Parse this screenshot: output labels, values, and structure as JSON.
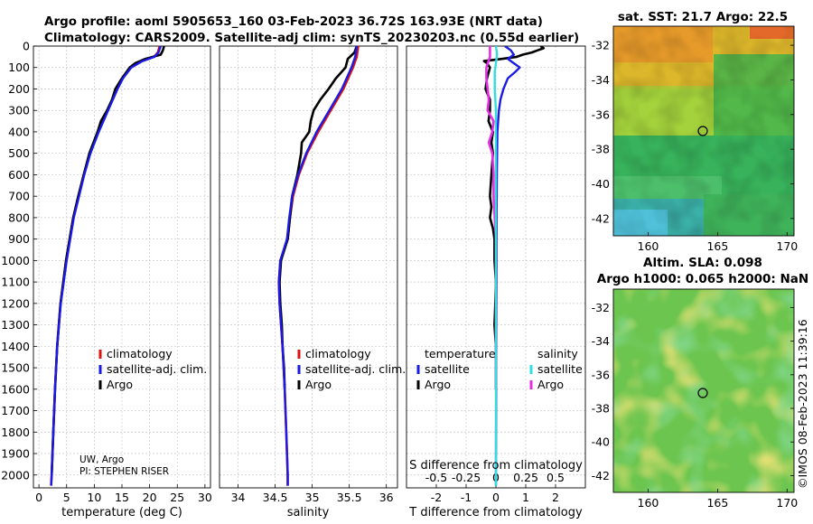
{
  "header": {
    "line1": "Argo profile: aoml 5905653_160 03-Feb-2023 36.72S 163.93E (NRT data)",
    "line2": "Climatology: CARS2009. Satellite-adj clim: synTS_20230203.nc (0.55d earlier)"
  },
  "colors": {
    "climatology": "#e01010",
    "satellite": "#1a1ae6",
    "argo": "#000000",
    "sal_sat": "#33dddd",
    "sal_argo": "#e62ee6"
  },
  "chart_data": [
    {
      "id": "temperature",
      "type": "line",
      "xlabel": "temperature (deg C)",
      "ylabel": "",
      "xlim": [
        -1,
        31
      ],
      "ylim": [
        2060,
        0
      ],
      "xticks": [
        0,
        5,
        10,
        15,
        20,
        25,
        30
      ],
      "xtick_labels": [
        "0",
        "5",
        "10",
        "15",
        "20",
        "25",
        "30"
      ],
      "yticks": [
        0,
        100,
        200,
        300,
        400,
        500,
        600,
        700,
        800,
        900,
        1000,
        1100,
        1200,
        1300,
        1400,
        1500,
        1600,
        1700,
        1800,
        1900,
        2000
      ],
      "legend": [
        "climatology",
        "satellite-adj. clim.",
        "Argo"
      ],
      "legend_position": "center-right",
      "annotation": [
        "UW, Argo",
        "PI: STEPHEN RISER"
      ],
      "series": [
        {
          "name": "climatology",
          "depth": [
            0,
            30,
            50,
            70,
            100,
            150,
            200,
            300,
            400,
            500,
            600,
            800,
            1000,
            1200,
            1400,
            1600,
            1800,
            2000,
            2050
          ],
          "values": [
            21.8,
            21.5,
            20.8,
            18.6,
            16.6,
            15.1,
            14.1,
            12.4,
            10.7,
            9.2,
            8.1,
            6.2,
            4.9,
            3.9,
            3.3,
            2.9,
            2.6,
            2.3,
            2.2
          ]
        },
        {
          "name": "satellite-adj. clim.",
          "depth": [
            0,
            30,
            50,
            70,
            100,
            150,
            200,
            300,
            400,
            500,
            600,
            800,
            1000,
            1200,
            1400,
            1600,
            1800,
            2000,
            2050
          ],
          "values": [
            22.0,
            21.6,
            20.9,
            18.7,
            16.7,
            15.2,
            14.2,
            12.5,
            10.8,
            9.3,
            8.2,
            6.3,
            5.0,
            3.95,
            3.3,
            2.9,
            2.6,
            2.3,
            2.2
          ]
        },
        {
          "name": "Argo",
          "depth": [
            0,
            20,
            40,
            60,
            80,
            100,
            150,
            200,
            250,
            300,
            350,
            400,
            500,
            600,
            700,
            800,
            1000,
            1200,
            1400,
            1600,
            1800,
            2000
          ],
          "values": [
            22.6,
            22.4,
            22.0,
            19.2,
            17.4,
            16.4,
            15.0,
            13.8,
            13.2,
            12.3,
            11.2,
            10.6,
            9.1,
            8.1,
            7.1,
            6.2,
            4.9,
            3.9,
            3.3,
            2.9,
            2.6,
            2.3
          ]
        }
      ]
    },
    {
      "id": "salinity",
      "type": "line",
      "xlabel": "salinity",
      "xlim": [
        33.75,
        36.15
      ],
      "ylim": [
        2060,
        0
      ],
      "xticks": [
        34,
        34.5,
        35,
        35.5,
        36
      ],
      "xtick_labels": [
        "34",
        "34.5",
        "35",
        "35.5",
        "36"
      ],
      "legend": [
        "climatology",
        "satellite-adj. clim.",
        "Argo"
      ],
      "legend_position": "center-right",
      "series": [
        {
          "name": "climatology",
          "depth": [
            0,
            50,
            100,
            200,
            300,
            400,
            500,
            600,
            700,
            800,
            900,
            1000,
            1100,
            1200,
            1300,
            1400,
            1600,
            1800,
            2000,
            2050
          ],
          "values": [
            35.62,
            35.6,
            35.55,
            35.42,
            35.25,
            35.08,
            34.93,
            34.82,
            34.74,
            34.7,
            34.67,
            34.57,
            34.55,
            34.56,
            34.58,
            34.6,
            34.63,
            34.65,
            34.67,
            34.67
          ]
        },
        {
          "name": "satellite-adj. clim.",
          "depth": [
            0,
            50,
            100,
            200,
            300,
            400,
            500,
            600,
            700,
            800,
            900,
            1000,
            1100,
            1200,
            1300,
            1400,
            1600,
            1800,
            2000,
            2050
          ],
          "values": [
            35.6,
            35.58,
            35.53,
            35.4,
            35.23,
            35.06,
            34.92,
            34.81,
            34.73,
            34.69,
            34.66,
            34.57,
            34.55,
            34.56,
            34.58,
            34.6,
            34.63,
            34.65,
            34.67,
            34.67
          ]
        },
        {
          "name": "Argo",
          "depth": [
            0,
            30,
            60,
            100,
            150,
            200,
            250,
            300,
            350,
            400,
            450,
            500,
            600,
            700,
            800,
            900,
            1000,
            1100,
            1200,
            1300,
            1400,
            1500,
            1600
          ],
          "values": [
            35.6,
            35.57,
            35.48,
            35.45,
            35.32,
            35.22,
            35.11,
            35.02,
            34.98,
            34.96,
            34.86,
            34.85,
            34.8,
            34.73,
            34.7,
            34.67,
            34.58,
            34.56,
            34.57,
            34.59,
            34.6,
            34.62,
            34.63
          ]
        }
      ]
    },
    {
      "id": "difference",
      "type": "line",
      "xlabel": "T difference from climatology",
      "x2label": "S difference from climatology",
      "xlim": [
        -3,
        3
      ],
      "x2lim": [
        -0.75,
        0.75
      ],
      "ylim": [
        2060,
        0
      ],
      "xticks": [
        -2,
        -1,
        0,
        1,
        2
      ],
      "xtick_labels": [
        "-2",
        "-1",
        "0",
        "1",
        "2"
      ],
      "x2ticks": [
        -0.5,
        -0.25,
        0,
        0.25,
        0.5
      ],
      "x2tick_labels": [
        "-0.5",
        "-0.25",
        "0",
        "0.25",
        "0.5"
      ],
      "legend_headers": [
        "temperature",
        "salinity"
      ],
      "legend": [
        "satellite",
        "Argo",
        "satellite",
        "Argo"
      ],
      "series": [
        {
          "name": "temperature satellite",
          "depth": [
            0,
            20,
            40,
            60,
            80,
            100,
            120,
            150,
            200,
            250,
            300,
            400,
            600,
            800,
            1000,
            1500,
            2000,
            2050
          ],
          "values": [
            0.3,
            0.5,
            0.6,
            0.4,
            0.6,
            0.8,
            0.65,
            0.4,
            0.25,
            0.15,
            0.1,
            0.05,
            0.03,
            0.02,
            0.02,
            0.01,
            0.0,
            0.0
          ]
        },
        {
          "name": "temperature Argo",
          "depth": [
            0,
            10,
            20,
            30,
            40,
            50,
            60,
            70,
            80,
            100,
            150,
            200,
            250,
            300,
            350,
            400,
            450,
            500,
            600,
            700,
            750,
            800,
            850,
            900,
            1000,
            1100,
            1200,
            1300,
            1400,
            1500,
            1600
          ],
          "values": [
            1.5,
            1.6,
            1.4,
            1.2,
            0.9,
            0.7,
            0.2,
            -0.4,
            -0.3,
            -0.2,
            -0.3,
            -0.35,
            -0.2,
            -0.2,
            -0.25,
            -0.1,
            -0.15,
            -0.1,
            -0.15,
            -0.2,
            -0.15,
            -0.2,
            -0.1,
            -0.05,
            -0.05,
            0.0,
            -0.02,
            -0.05,
            0.0,
            0.0,
            0.0
          ]
        },
        {
          "name": "salinity satellite",
          "depth": [
            0,
            40,
            80,
            120,
            200,
            300,
            400,
            600,
            800,
            1000,
            1500,
            2000,
            2050
          ],
          "values": [
            0.0,
            0.01,
            0.0,
            -0.01,
            -0.01,
            0.0,
            0.0,
            0.0,
            0.0,
            0.0,
            0.0,
            0.0,
            0.0
          ]
        },
        {
          "name": "salinity Argo",
          "depth": [
            0,
            50,
            100,
            150,
            200,
            250,
            300,
            350,
            400,
            450,
            500,
            600,
            700,
            800,
            900,
            1000,
            1100,
            1200,
            1300,
            1400,
            1500,
            1600
          ],
          "values": [
            -0.05,
            -0.05,
            -0.08,
            -0.08,
            -0.07,
            -0.06,
            -0.07,
            -0.02,
            -0.03,
            -0.06,
            -0.03,
            -0.02,
            -0.02,
            -0.01,
            0.0,
            0.0,
            0.0,
            0.0,
            0.0,
            0.0,
            0.0,
            0.0
          ]
        }
      ]
    },
    {
      "id": "sst-map",
      "type": "heatmap",
      "title": "sat. SST: 21.7 Argo: 22.5",
      "xlim": [
        157.5,
        170.5
      ],
      "ylim": [
        -43,
        -30.9
      ],
      "xticks": [
        160,
        165,
        170
      ],
      "yticks": [
        -32,
        -34,
        -36,
        -38,
        -40,
        -42
      ],
      "yticks_side": "right",
      "float_position": [
        163.93,
        -36.72
      ]
    },
    {
      "id": "sla-map",
      "type": "heatmap",
      "title1": "Altim. SLA: 0.098",
      "title2": "Argo h1000: 0.065 h2000: NaN",
      "xlim": [
        157.5,
        170.5
      ],
      "ylim": [
        -43,
        -30.9
      ],
      "xticks": [
        160,
        165,
        170
      ],
      "yticks": [
        -32,
        -34,
        -36,
        -38,
        -40,
        -42
      ],
      "yticks_side": "right",
      "float_position": [
        163.93,
        -36.72
      ],
      "stamp": "©IMOS 08-Feb-2023 11:39:16"
    }
  ]
}
